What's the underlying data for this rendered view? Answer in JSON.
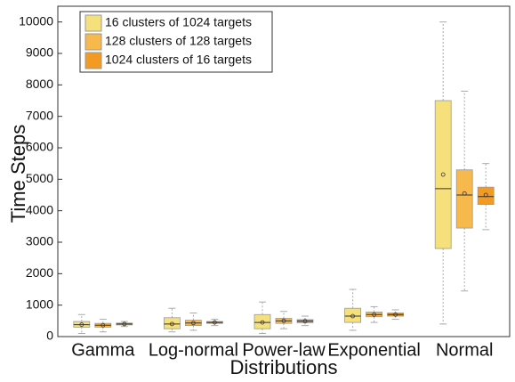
{
  "chart_data": {
    "type": "box",
    "x_label": "Distributions",
    "y_label": "Time Steps",
    "categories": [
      "Gamma",
      "Log-normal",
      "Power-law",
      "Exponential",
      "Normal"
    ],
    "ylim": [
      0,
      10500
    ],
    "yticks": [
      0,
      1000,
      2000,
      3000,
      4000,
      5000,
      6000,
      7000,
      8000,
      9000,
      10000
    ],
    "legend": "upper left",
    "series": [
      {
        "name": "16 clusters of 1024 targets",
        "color": "#f6e07c",
        "min": [
          100,
          150,
          100,
          200,
          400
        ],
        "q1": [
          300,
          250,
          250,
          450,
          2800
        ],
        "median": [
          380,
          400,
          450,
          650,
          4700
        ],
        "q3": [
          480,
          600,
          700,
          900,
          7500
        ],
        "max": [
          700,
          900,
          1100,
          1500,
          10000
        ],
        "mean": [
          380,
          400,
          450,
          650,
          5150
        ]
      },
      {
        "name": "128 clusters of 128 targets",
        "color": "#f8b94c",
        "min": [
          150,
          200,
          250,
          450,
          1450
        ],
        "q1": [
          300,
          350,
          420,
          630,
          3450
        ],
        "median": [
          360,
          430,
          500,
          700,
          4500
        ],
        "q3": [
          420,
          520,
          580,
          780,
          5300
        ],
        "max": [
          550,
          750,
          800,
          950,
          7800
        ],
        "mean": [
          360,
          430,
          500,
          700,
          4550
        ]
      },
      {
        "name": "1024 clusters of 16 targets",
        "color": "#f39a22",
        "min": [
          320,
          350,
          350,
          550,
          3400
        ],
        "q1": [
          370,
          420,
          440,
          650,
          4200
        ],
        "median": [
          400,
          450,
          490,
          700,
          4450
        ],
        "q3": [
          430,
          480,
          540,
          750,
          4750
        ],
        "max": [
          480,
          550,
          650,
          850,
          5500
        ],
        "mean": [
          400,
          450,
          490,
          700,
          4500
        ]
      }
    ]
  }
}
